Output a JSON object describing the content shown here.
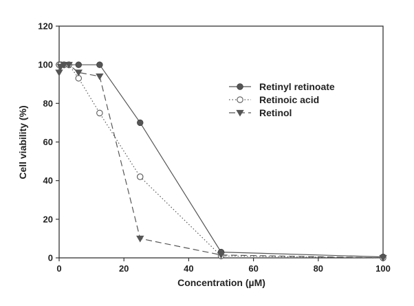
{
  "chart_data": {
    "type": "line",
    "title": "",
    "xlabel": "Concentration (µM)",
    "ylabel": "Cell viability (%)",
    "xlim": [
      0,
      100
    ],
    "ylim": [
      0,
      120
    ],
    "xticks": [
      0,
      20,
      40,
      60,
      80,
      100
    ],
    "yticks": [
      0,
      20,
      40,
      60,
      80,
      100,
      120
    ],
    "grid": false,
    "legend_position": "top-right",
    "series": [
      {
        "name": "Retinyl retinoate",
        "marker": "filled-circle",
        "line": "solid",
        "color": "#555555",
        "x": [
          0,
          0.5,
          1.5,
          3,
          6,
          12.5,
          25,
          50,
          100
        ],
        "y": [
          100,
          100,
          100,
          100,
          100,
          100,
          70,
          3,
          0.5
        ]
      },
      {
        "name": "Retinoic acid",
        "marker": "open-circle",
        "line": "dotted",
        "color": "#555555",
        "x": [
          0,
          0.5,
          1.5,
          3,
          6,
          12.5,
          25,
          50,
          100
        ],
        "y": [
          100,
          100,
          100,
          100,
          93,
          75,
          42,
          1,
          0
        ]
      },
      {
        "name": "Retinol",
        "marker": "filled-triangle-down",
        "line": "dashed",
        "color": "#555555",
        "x": [
          0,
          0.5,
          1.5,
          3,
          6,
          12.5,
          25,
          50,
          100
        ],
        "y": [
          96,
          99,
          100,
          100,
          96,
          94,
          10,
          1.5,
          0
        ]
      }
    ]
  }
}
